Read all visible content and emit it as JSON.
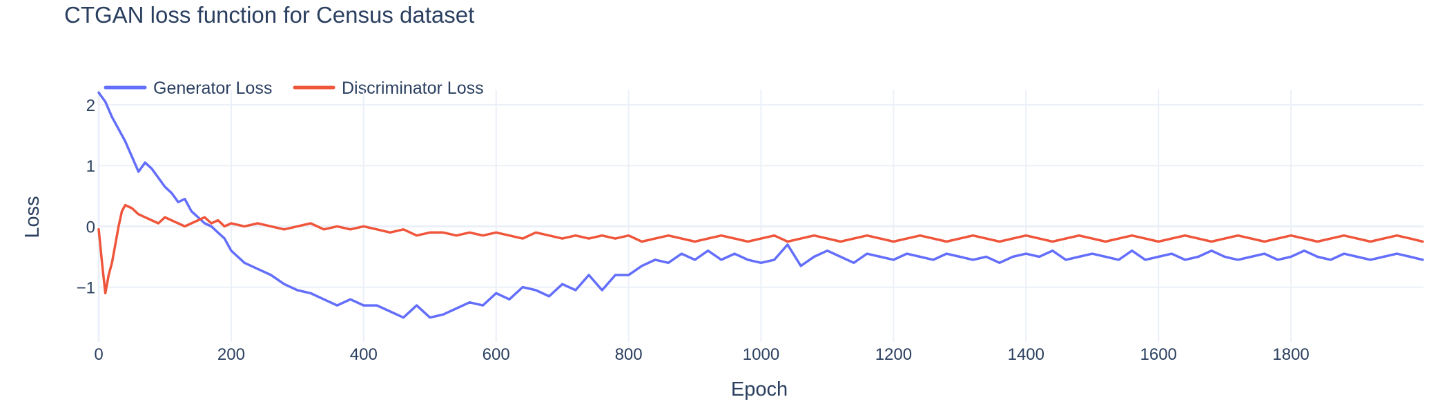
{
  "chart_data": {
    "type": "line",
    "title": "CTGAN loss function for Census dataset",
    "xlabel": "Epoch",
    "ylabel": "Loss",
    "xlim": [
      0,
      2000
    ],
    "ylim": [
      -1.9,
      2.25
    ],
    "xticks": [
      0,
      200,
      400,
      600,
      800,
      1000,
      1200,
      1400,
      1600,
      1800
    ],
    "xtick_labels": [
      "0",
      "200",
      "400",
      "600",
      "800",
      "1000",
      "1200",
      "1400",
      "1600",
      "1800"
    ],
    "yticks": [
      2,
      1,
      0,
      -1
    ],
    "ytick_labels": [
      "2",
      "1",
      "0",
      "−1"
    ],
    "grid": true,
    "legend": "top-left, horizontal",
    "series": [
      {
        "name": "Generator Loss",
        "color": "#636efa",
        "x": [
          0,
          10,
          20,
          30,
          40,
          50,
          60,
          70,
          80,
          90,
          100,
          110,
          120,
          130,
          140,
          150,
          160,
          170,
          180,
          190,
          200,
          220,
          240,
          260,
          280,
          300,
          320,
          340,
          360,
          380,
          400,
          420,
          440,
          460,
          480,
          500,
          520,
          540,
          560,
          580,
          600,
          620,
          640,
          660,
          680,
          700,
          720,
          740,
          760,
          780,
          800,
          820,
          840,
          860,
          880,
          900,
          920,
          940,
          960,
          980,
          1000,
          1020,
          1040,
          1060,
          1080,
          1100,
          1120,
          1140,
          1160,
          1180,
          1200,
          1220,
          1240,
          1260,
          1280,
          1300,
          1320,
          1340,
          1360,
          1380,
          1400,
          1420,
          1440,
          1460,
          1480,
          1500,
          1520,
          1540,
          1560,
          1580,
          1600,
          1620,
          1640,
          1660,
          1680,
          1700,
          1720,
          1740,
          1760,
          1780,
          1800,
          1820,
          1840,
          1860,
          1880,
          1900,
          1920,
          1940,
          1960,
          1980,
          1999
        ],
        "y": [
          2.2,
          2.05,
          1.8,
          1.6,
          1.4,
          1.15,
          0.9,
          1.05,
          0.95,
          0.8,
          0.65,
          0.55,
          0.4,
          0.45,
          0.25,
          0.15,
          0.05,
          0.0,
          -0.1,
          -0.2,
          -0.4,
          -0.6,
          -0.7,
          -0.8,
          -0.95,
          -1.05,
          -1.1,
          -1.2,
          -1.3,
          -1.2,
          -1.3,
          -1.3,
          -1.4,
          -1.5,
          -1.3,
          -1.5,
          -1.45,
          -1.35,
          -1.25,
          -1.3,
          -1.1,
          -1.2,
          -1.0,
          -1.05,
          -1.15,
          -0.95,
          -1.05,
          -0.8,
          -1.05,
          -0.8,
          -0.8,
          -0.65,
          -0.55,
          -0.6,
          -0.45,
          -0.55,
          -0.4,
          -0.55,
          -0.45,
          -0.55,
          -0.6,
          -0.55,
          -0.3,
          -0.65,
          -0.5,
          -0.4,
          -0.5,
          -0.6,
          -0.45,
          -0.5,
          -0.55,
          -0.45,
          -0.5,
          -0.55,
          -0.45,
          -0.5,
          -0.55,
          -0.5,
          -0.6,
          -0.5,
          -0.45,
          -0.5,
          -0.4,
          -0.55,
          -0.5,
          -0.45,
          -0.5,
          -0.55,
          -0.4,
          -0.55,
          -0.5,
          -0.45,
          -0.55,
          -0.5,
          -0.4,
          -0.5,
          -0.55,
          -0.5,
          -0.45,
          -0.55,
          -0.5,
          -0.4,
          -0.5,
          -0.55,
          -0.45,
          -0.5,
          -0.55,
          -0.5,
          -0.45,
          -0.5,
          -0.55
        ]
      },
      {
        "name": "Discriminator Loss",
        "color": "#ef553b",
        "x": [
          0,
          5,
          10,
          15,
          20,
          25,
          30,
          35,
          40,
          50,
          60,
          70,
          80,
          90,
          100,
          110,
          120,
          130,
          140,
          150,
          160,
          170,
          180,
          190,
          200,
          220,
          240,
          260,
          280,
          300,
          320,
          340,
          360,
          380,
          400,
          420,
          440,
          460,
          480,
          500,
          520,
          540,
          560,
          580,
          600,
          620,
          640,
          660,
          680,
          700,
          720,
          740,
          760,
          780,
          800,
          820,
          840,
          860,
          880,
          900,
          920,
          940,
          960,
          980,
          1000,
          1020,
          1040,
          1060,
          1080,
          1100,
          1120,
          1140,
          1160,
          1180,
          1200,
          1220,
          1240,
          1260,
          1280,
          1300,
          1320,
          1340,
          1360,
          1380,
          1400,
          1420,
          1440,
          1460,
          1480,
          1500,
          1520,
          1540,
          1560,
          1580,
          1600,
          1620,
          1640,
          1660,
          1680,
          1700,
          1720,
          1740,
          1760,
          1780,
          1800,
          1820,
          1840,
          1860,
          1880,
          1900,
          1920,
          1940,
          1960,
          1980,
          1999
        ],
        "y": [
          -0.05,
          -0.6,
          -1.1,
          -0.8,
          -0.6,
          -0.3,
          0.0,
          0.25,
          0.35,
          0.3,
          0.2,
          0.15,
          0.1,
          0.05,
          0.15,
          0.1,
          0.05,
          0.0,
          0.05,
          0.1,
          0.15,
          0.05,
          0.1,
          0.0,
          0.05,
          0.0,
          0.05,
          0.0,
          -0.05,
          0.0,
          0.05,
          -0.05,
          0.0,
          -0.05,
          0.0,
          -0.05,
          -0.1,
          -0.05,
          -0.15,
          -0.1,
          -0.1,
          -0.15,
          -0.1,
          -0.15,
          -0.1,
          -0.15,
          -0.2,
          -0.1,
          -0.15,
          -0.2,
          -0.15,
          -0.2,
          -0.15,
          -0.2,
          -0.15,
          -0.25,
          -0.2,
          -0.15,
          -0.2,
          -0.25,
          -0.2,
          -0.15,
          -0.2,
          -0.25,
          -0.2,
          -0.15,
          -0.25,
          -0.2,
          -0.15,
          -0.2,
          -0.25,
          -0.2,
          -0.15,
          -0.2,
          -0.25,
          -0.2,
          -0.15,
          -0.2,
          -0.25,
          -0.2,
          -0.15,
          -0.2,
          -0.25,
          -0.2,
          -0.15,
          -0.2,
          -0.25,
          -0.2,
          -0.15,
          -0.2,
          -0.25,
          -0.2,
          -0.15,
          -0.2,
          -0.25,
          -0.2,
          -0.15,
          -0.2,
          -0.25,
          -0.2,
          -0.15,
          -0.2,
          -0.25,
          -0.2,
          -0.15,
          -0.2,
          -0.25,
          -0.2,
          -0.15,
          -0.2,
          -0.25,
          -0.2,
          -0.15,
          -0.2,
          -0.25
        ]
      }
    ]
  }
}
